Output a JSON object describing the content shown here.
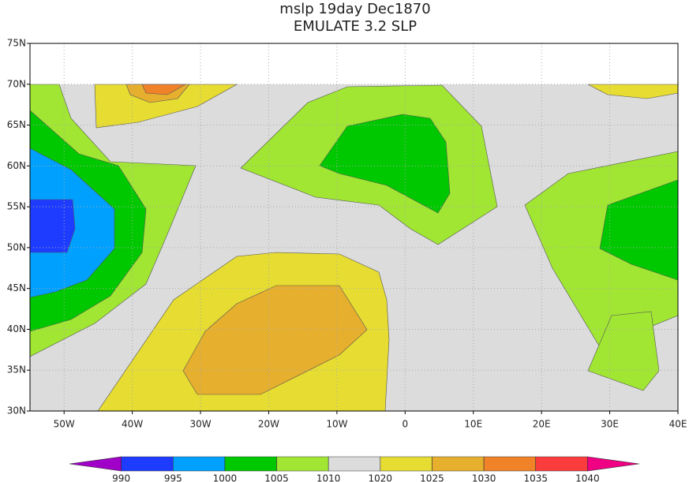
{
  "chart_data": {
    "type": "contour",
    "title": "mslp 19day Dec1870",
    "subtitle": "EMULATE 3.2 SLP",
    "xlim": [
      -55,
      40
    ],
    "ylim": [
      30,
      75
    ],
    "xticks": [
      {
        "value": -50,
        "label": "50W"
      },
      {
        "value": -40,
        "label": "40W"
      },
      {
        "value": -30,
        "label": "30W"
      },
      {
        "value": -20,
        "label": "20W"
      },
      {
        "value": -10,
        "label": "10W"
      },
      0,
      {
        "value": 10,
        "label": "10E"
      },
      {
        "value": 20,
        "label": "20E"
      },
      {
        "value": 30,
        "label": "30E"
      },
      {
        "value": 40,
        "label": "40E"
      }
    ],
    "yticks": [
      {
        "value": 30,
        "label": "30N"
      },
      {
        "value": 35,
        "label": "35N"
      },
      {
        "value": 40,
        "label": "40N"
      },
      {
        "value": 45,
        "label": "45N"
      },
      {
        "value": 50,
        "label": "50N"
      },
      {
        "value": 55,
        "label": "55N"
      },
      {
        "value": 60,
        "label": "60N"
      },
      {
        "value": 65,
        "label": "65N"
      },
      {
        "value": 70,
        "label": "70N"
      },
      {
        "value": 75,
        "label": "75N"
      }
    ],
    "grid": true,
    "colorbar": {
      "levels": [
        990,
        995,
        1000,
        1005,
        1010,
        1020,
        1025,
        1030,
        1035,
        1040
      ],
      "colors": [
        "#a000c8",
        "#1e3cff",
        "#00a0ff",
        "#00c800",
        "#a0e632",
        "#dcdcdc",
        "#e6dc32",
        "#e6af2d",
        "#f08228",
        "#fa3c3c",
        "#f00082"
      ]
    }
  }
}
